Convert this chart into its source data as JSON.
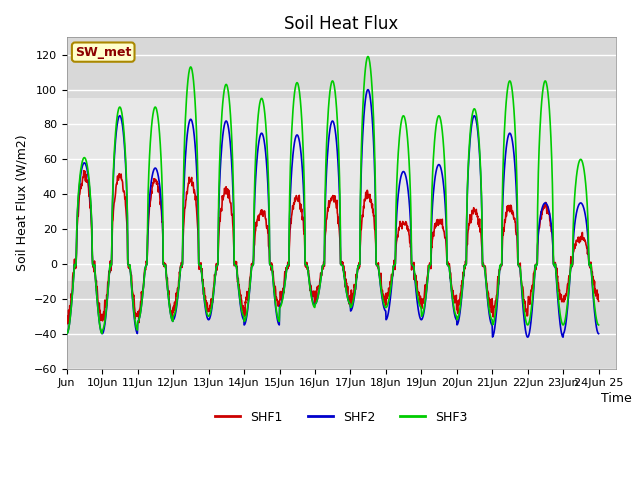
{
  "title": "Soil Heat Flux",
  "ylabel": "Soil Heat Flux (W/m2)",
  "xlabel": "Time",
  "ylim": [
    -60,
    130
  ],
  "yticks": [
    -60,
    -40,
    -20,
    0,
    20,
    40,
    60,
    80,
    100,
    120
  ],
  "xlim": [
    0,
    15.5
  ],
  "xtick_labels": [
    "Jun",
    "10Jun",
    "11Jun",
    "12Jun",
    "13Jun",
    "14Jun",
    "15Jun",
    "16Jun",
    "17Jun",
    "18Jun",
    "19Jun",
    "20Jun",
    "21Jun",
    "22Jun",
    "23Jun",
    "24Jun 25"
  ],
  "xtick_positions": [
    0,
    1,
    2,
    3,
    4,
    5,
    6,
    7,
    8,
    9,
    10,
    11,
    12,
    13,
    14,
    15
  ],
  "legend_labels": [
    "SHF1",
    "SHF2",
    "SHF3"
  ],
  "legend_colors": [
    "#cc0000",
    "#0000cc",
    "#00cc00"
  ],
  "sw_met_label": "SW_met",
  "background_color": "#ffffff",
  "plot_bg_color": "#d8d8d8",
  "shaded_region_color": "#e8e8e8",
  "shaded_ymin": -10,
  "shaded_ymax": 95,
  "grid_color": "#ffffff",
  "line_width": 1.2
}
